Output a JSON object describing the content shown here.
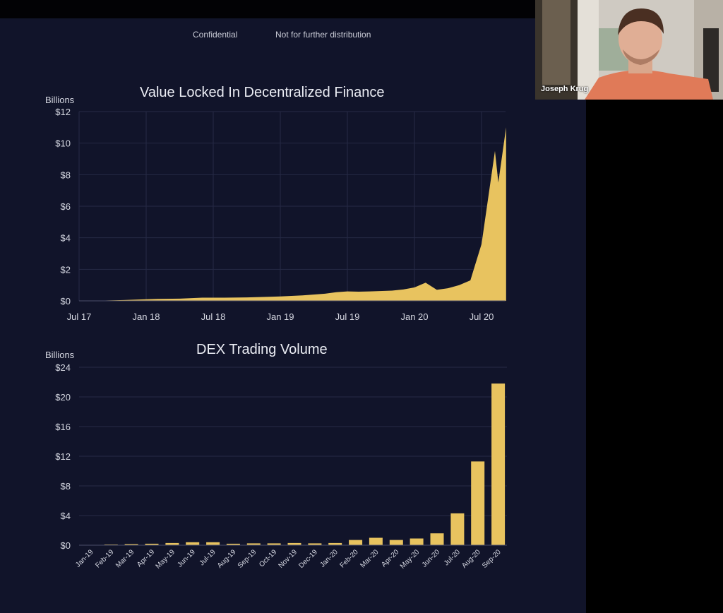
{
  "slide": {
    "confidential_label": "Confidential",
    "distribution_label": "Not for further distribution"
  },
  "participant": {
    "name": "Joseph Krug"
  },
  "chart_data": [
    {
      "type": "area",
      "title": "Value Locked In Decentralized Finance",
      "ylabel": "Billions",
      "xlabel": "",
      "color": "#e8c35f",
      "ylim": [
        0,
        12
      ],
      "y_ticks": [
        "$0",
        "$2",
        "$4",
        "$6",
        "$8",
        "$10",
        "$12"
      ],
      "x_ticks": [
        "Jul 17",
        "Jan 18",
        "Jul 18",
        "Jan 19",
        "Jul 19",
        "Jan 20",
        "Jul 20"
      ],
      "grid": true,
      "points": [
        [
          "Jul 17",
          0.0
        ],
        [
          "Sep 17",
          0.02
        ],
        [
          "Nov 17",
          0.05
        ],
        [
          "Jan 18",
          0.1
        ],
        [
          "Feb 18",
          0.12
        ],
        [
          "Apr 18",
          0.14
        ],
        [
          "Jun 18",
          0.2
        ],
        [
          "Aug 18",
          0.2
        ],
        [
          "Oct 18",
          0.22
        ],
        [
          "Dec 18",
          0.26
        ],
        [
          "Jan 19",
          0.28
        ],
        [
          "Mar 19",
          0.35
        ],
        [
          "May 19",
          0.45
        ],
        [
          "Jun 19",
          0.55
        ],
        [
          "Jul 19",
          0.6
        ],
        [
          "Aug 19",
          0.58
        ],
        [
          "Sep 19",
          0.6
        ],
        [
          "Nov 19",
          0.65
        ],
        [
          "Dec 19",
          0.72
        ],
        [
          "Jan 20",
          0.85
        ],
        [
          "Feb 20",
          1.15
        ],
        [
          "Mar 20",
          0.7
        ],
        [
          "Apr 20",
          0.8
        ],
        [
          "May 20",
          1.0
        ],
        [
          "Jun 20",
          1.3
        ],
        [
          "Jul 20",
          3.6
        ],
        [
          "Aug 20",
          9.5
        ],
        [
          "Aug 20b",
          7.5
        ],
        [
          "Sep 20",
          11.0
        ]
      ]
    },
    {
      "type": "bar",
      "title": "DEX Trading Volume",
      "ylabel": "Billions",
      "xlabel": "",
      "color": "#e8c35f",
      "ylim": [
        0,
        24
      ],
      "y_ticks": [
        "$0",
        "$4",
        "$8",
        "$12",
        "$16",
        "$20",
        "$24"
      ],
      "grid": true,
      "categories": [
        "Jan-19",
        "Feb-19",
        "Mar-19",
        "Apr-19",
        "May-19",
        "Jun-19",
        "Jul-19",
        "Aug-19",
        "Sep-19",
        "Oct-19",
        "Nov-19",
        "Dec-19",
        "Jan-20",
        "Feb-20",
        "Mar-20",
        "Apr-20",
        "May-20",
        "Jun-20",
        "Jul-20",
        "Aug-20",
        "Sep-20"
      ],
      "values": [
        0.05,
        0.1,
        0.15,
        0.2,
        0.3,
        0.4,
        0.4,
        0.2,
        0.25,
        0.25,
        0.3,
        0.25,
        0.3,
        0.7,
        1.0,
        0.7,
        0.9,
        1.6,
        4.3,
        11.3,
        21.8
      ]
    }
  ]
}
